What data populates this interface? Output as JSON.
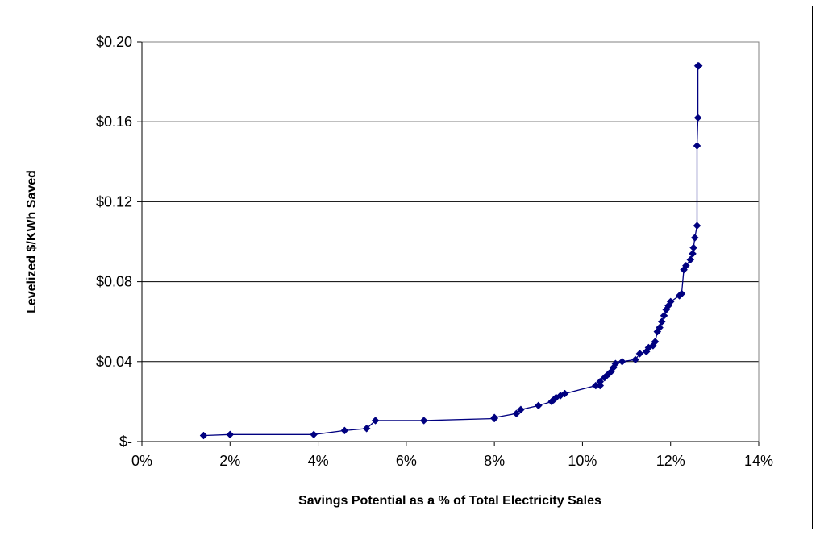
{
  "chart_data": {
    "type": "line",
    "title": "",
    "xlabel": "Savings Potential as a % of Total Electricity Sales",
    "ylabel": "Levelized $/KWh Saved",
    "xlim": [
      0,
      14
    ],
    "ylim": [
      0,
      0.2
    ],
    "x_ticks": [
      "0%",
      "2%",
      "4%",
      "6%",
      "8%",
      "10%",
      "12%",
      "14%"
    ],
    "y_ticks": [
      "$-",
      "$0.04",
      "$0.08",
      "$0.12",
      "$0.16",
      "$0.20"
    ],
    "grid": "horizontal",
    "marker": "diamond",
    "color": "#000080",
    "series": [
      {
        "x": [
          1.4,
          2.0,
          3.9,
          4.6,
          5.1,
          5.3,
          6.4,
          8.0,
          8.0,
          8.5,
          8.6,
          9.0,
          9.3,
          9.35,
          9.4,
          9.5,
          9.6,
          10.3,
          10.4,
          10.4,
          10.5,
          10.55,
          10.6,
          10.65,
          10.7,
          10.75,
          10.9,
          11.2,
          11.3,
          11.45,
          11.5,
          11.6,
          11.65,
          11.7,
          11.75,
          11.8,
          11.85,
          11.9,
          11.95,
          12.0,
          12.2,
          12.25,
          12.3,
          12.35,
          12.45,
          12.5,
          12.52,
          12.55,
          12.6,
          12.6,
          12.62,
          12.62,
          12.64
        ],
        "y": [
          0.003,
          0.0035,
          0.0035,
          0.0055,
          0.0065,
          0.0105,
          0.0105,
          0.0115,
          0.012,
          0.014,
          0.016,
          0.018,
          0.02,
          0.021,
          0.022,
          0.023,
          0.024,
          0.028,
          0.028,
          0.03,
          0.032,
          0.033,
          0.034,
          0.035,
          0.037,
          0.039,
          0.04,
          0.041,
          0.044,
          0.045,
          0.047,
          0.048,
          0.05,
          0.055,
          0.057,
          0.06,
          0.063,
          0.066,
          0.068,
          0.07,
          0.073,
          0.074,
          0.086,
          0.088,
          0.091,
          0.094,
          0.097,
          0.102,
          0.108,
          0.148,
          0.162,
          0.188,
          0.188
        ]
      }
    ]
  }
}
